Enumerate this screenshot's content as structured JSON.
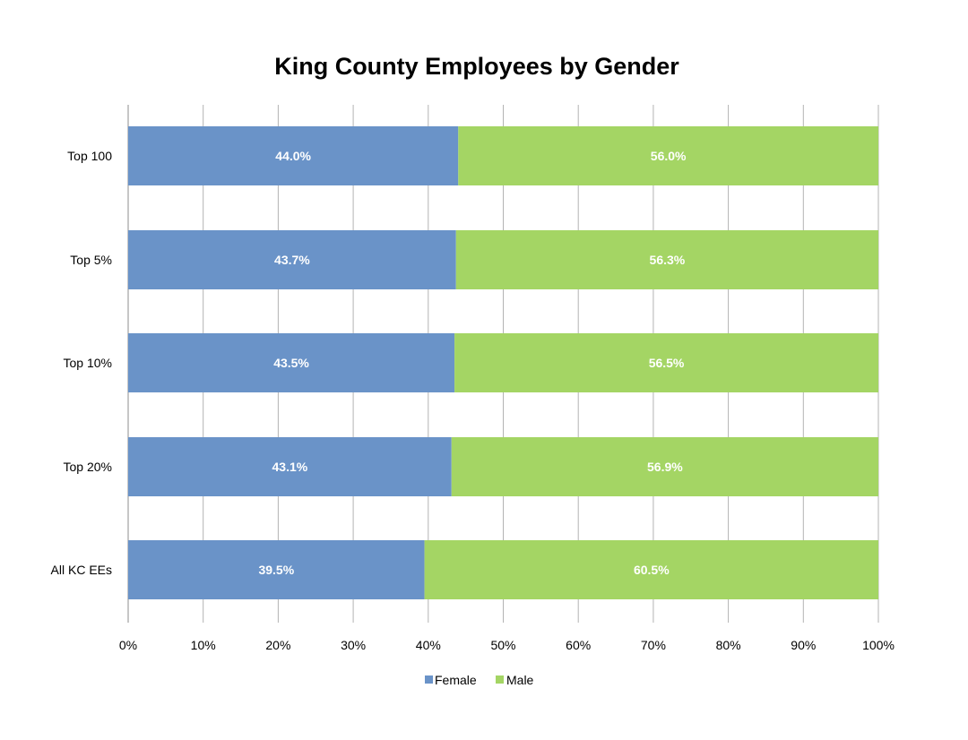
{
  "chart_data": {
    "type": "bar",
    "orientation": "horizontal",
    "stacked": "percent",
    "title": "King County Employees by Gender",
    "categories": [
      "Top 100",
      "Top 5%",
      "Top 10%",
      "Top 20%",
      "All KC EEs"
    ],
    "series": [
      {
        "name": "Female",
        "values": [
          44.0,
          43.7,
          43.5,
          43.1,
          39.5
        ],
        "labels": [
          "44.0%",
          "43.7%",
          "43.5%",
          "43.1%",
          "39.5%"
        ],
        "color": "#6a93c8"
      },
      {
        "name": "Male",
        "values": [
          56.0,
          56.3,
          56.5,
          56.9,
          60.5
        ],
        "labels": [
          "56.0%",
          "56.3%",
          "56.5%",
          "56.9%",
          "60.5%"
        ],
        "color": "#a4d564"
      }
    ],
    "xlim": [
      0,
      100
    ],
    "xticks": [
      "0%",
      "10%",
      "20%",
      "30%",
      "40%",
      "50%",
      "60%",
      "70%",
      "80%",
      "90%",
      "100%"
    ],
    "grid": true,
    "legend_position": "bottom"
  }
}
